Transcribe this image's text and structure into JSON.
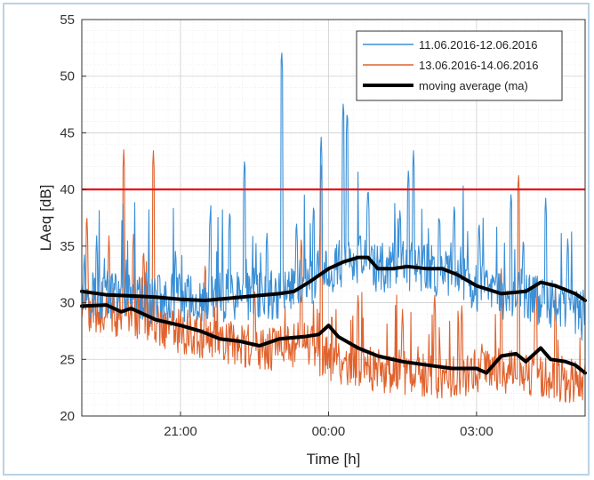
{
  "chart_data": {
    "type": "line",
    "xlabel": "Time [h]",
    "ylabel": "LAeq [dB]",
    "xlim": [
      19.0,
      29.2
    ],
    "ylim": [
      20,
      55
    ],
    "x_ticks": [
      {
        "value": 21,
        "label": "21:00"
      },
      {
        "value": 24,
        "label": "00:00"
      },
      {
        "value": 27,
        "label": "03:00"
      }
    ],
    "y_ticks": [
      20,
      25,
      30,
      35,
      40,
      45,
      50,
      55
    ],
    "grid": true,
    "minor_grid": true,
    "legend_position": "top-right",
    "threshold": {
      "value": 40,
      "color": "#e8161b"
    },
    "series": [
      {
        "name": "11.06.2016-12.06.2016",
        "color": "#3a8fd6",
        "anchors": [
          [
            19.0,
            31.0
          ],
          [
            19.5,
            30.6
          ],
          [
            20.0,
            30.6
          ],
          [
            20.5,
            30.3
          ],
          [
            21.0,
            30.4
          ],
          [
            21.5,
            30.2
          ],
          [
            22.0,
            30.5
          ],
          [
            22.5,
            30.6
          ],
          [
            23.0,
            30.8
          ],
          [
            23.5,
            31.5
          ],
          [
            24.0,
            33.0
          ],
          [
            24.5,
            34.0
          ],
          [
            25.0,
            33.0
          ],
          [
            25.5,
            33.2
          ],
          [
            26.0,
            33.0
          ],
          [
            26.5,
            32.5
          ],
          [
            27.0,
            31.5
          ],
          [
            27.5,
            30.8
          ],
          [
            28.0,
            30.5
          ],
          [
            28.5,
            30.0
          ],
          [
            29.2,
            28.5
          ]
        ],
        "spikes": [
          [
            19.05,
            34.5
          ],
          [
            19.3,
            36.0
          ],
          [
            20.9,
            35.0
          ],
          [
            21.6,
            38.0
          ],
          [
            22.0,
            38.5
          ],
          [
            22.3,
            43.0
          ],
          [
            22.75,
            36.5
          ],
          [
            23.05,
            52.5
          ],
          [
            23.35,
            37.5
          ],
          [
            23.7,
            39.0
          ],
          [
            23.85,
            44.8
          ],
          [
            24.3,
            48.0
          ],
          [
            24.38,
            47.2
          ],
          [
            24.8,
            40.5
          ],
          [
            25.45,
            38.5
          ],
          [
            25.62,
            42.0
          ],
          [
            25.72,
            43.6
          ],
          [
            26.25,
            38.0
          ],
          [
            26.55,
            39.0
          ],
          [
            27.05,
            37.5
          ],
          [
            27.7,
            40.0
          ],
          [
            27.95,
            36.0
          ],
          [
            28.4,
            39.5
          ],
          [
            28.85,
            36.0
          ]
        ]
      },
      {
        "name": "13.06.2016-14.06.2016",
        "color": "#e0632e",
        "anchors": [
          [
            19.0,
            29.5
          ],
          [
            19.5,
            29.0
          ],
          [
            20.0,
            28.8
          ],
          [
            20.5,
            28.2
          ],
          [
            21.0,
            27.5
          ],
          [
            21.5,
            27.0
          ],
          [
            22.0,
            26.5
          ],
          [
            22.5,
            26.0
          ],
          [
            23.0,
            26.0
          ],
          [
            23.5,
            26.5
          ],
          [
            24.0,
            25.0
          ],
          [
            24.5,
            24.5
          ],
          [
            25.0,
            24.0
          ],
          [
            25.5,
            23.8
          ],
          [
            26.0,
            23.5
          ],
          [
            26.5,
            23.5
          ],
          [
            27.0,
            24.0
          ],
          [
            27.5,
            24.0
          ],
          [
            28.0,
            23.5
          ],
          [
            28.5,
            23.3
          ],
          [
            29.2,
            23.0
          ]
        ],
        "spikes": [
          [
            19.1,
            38.0
          ],
          [
            19.55,
            36.0
          ],
          [
            19.85,
            43.5
          ],
          [
            20.05,
            36.5
          ],
          [
            20.25,
            35.0
          ],
          [
            20.45,
            43.6
          ],
          [
            21.5,
            33.5
          ],
          [
            22.5,
            31.5
          ],
          [
            23.45,
            36.0
          ],
          [
            23.85,
            42.3
          ],
          [
            24.6,
            31.0
          ],
          [
            25.5,
            29.5
          ],
          [
            26.15,
            31.0
          ],
          [
            26.7,
            30.0
          ],
          [
            27.5,
            33.0
          ],
          [
            27.85,
            41.6
          ],
          [
            28.2,
            32.0
          ],
          [
            28.6,
            31.5
          ]
        ]
      },
      {
        "name": "moving average (ma)",
        "color": "#000000",
        "segments": [
          [
            [
              19.0,
              31.0
            ],
            [
              19.5,
              30.7
            ],
            [
              20.0,
              30.6
            ],
            [
              20.5,
              30.5
            ],
            [
              21.0,
              30.3
            ],
            [
              21.5,
              30.2
            ],
            [
              22.0,
              30.4
            ],
            [
              22.5,
              30.6
            ],
            [
              23.0,
              30.8
            ],
            [
              23.3,
              31.0
            ],
            [
              23.6,
              31.8
            ],
            [
              24.0,
              33.0
            ],
            [
              24.3,
              33.6
            ],
            [
              24.6,
              34.0
            ],
            [
              24.8,
              34.0
            ],
            [
              25.0,
              33.0
            ],
            [
              25.3,
              33.0
            ],
            [
              25.6,
              33.2
            ],
            [
              26.0,
              33.0
            ],
            [
              26.3,
              33.0
            ],
            [
              26.6,
              32.5
            ],
            [
              27.0,
              31.5
            ],
            [
              27.5,
              30.8
            ],
            [
              28.0,
              31.0
            ],
            [
              28.3,
              31.8
            ],
            [
              28.6,
              31.5
            ],
            [
              29.0,
              30.8
            ],
            [
              29.2,
              30.2
            ]
          ],
          [
            [
              19.0,
              29.7
            ],
            [
              19.5,
              29.8
            ],
            [
              19.8,
              29.2
            ],
            [
              20.0,
              29.5
            ],
            [
              20.5,
              28.5
            ],
            [
              21.0,
              28.0
            ],
            [
              21.4,
              27.5
            ],
            [
              21.8,
              26.8
            ],
            [
              22.2,
              26.6
            ],
            [
              22.6,
              26.2
            ],
            [
              23.0,
              26.8
            ],
            [
              23.5,
              27.0
            ],
            [
              23.8,
              27.2
            ],
            [
              24.0,
              28.0
            ],
            [
              24.2,
              27.0
            ],
            [
              24.6,
              26.0
            ],
            [
              25.0,
              25.3
            ],
            [
              25.5,
              24.8
            ],
            [
              26.0,
              24.5
            ],
            [
              26.5,
              24.2
            ],
            [
              27.0,
              24.2
            ],
            [
              27.2,
              23.8
            ],
            [
              27.5,
              25.3
            ],
            [
              27.8,
              25.5
            ],
            [
              28.0,
              24.8
            ],
            [
              28.3,
              26.0
            ],
            [
              28.5,
              25.0
            ],
            [
              28.8,
              24.8
            ],
            [
              29.0,
              24.5
            ],
            [
              29.2,
              23.8
            ]
          ]
        ]
      }
    ]
  }
}
